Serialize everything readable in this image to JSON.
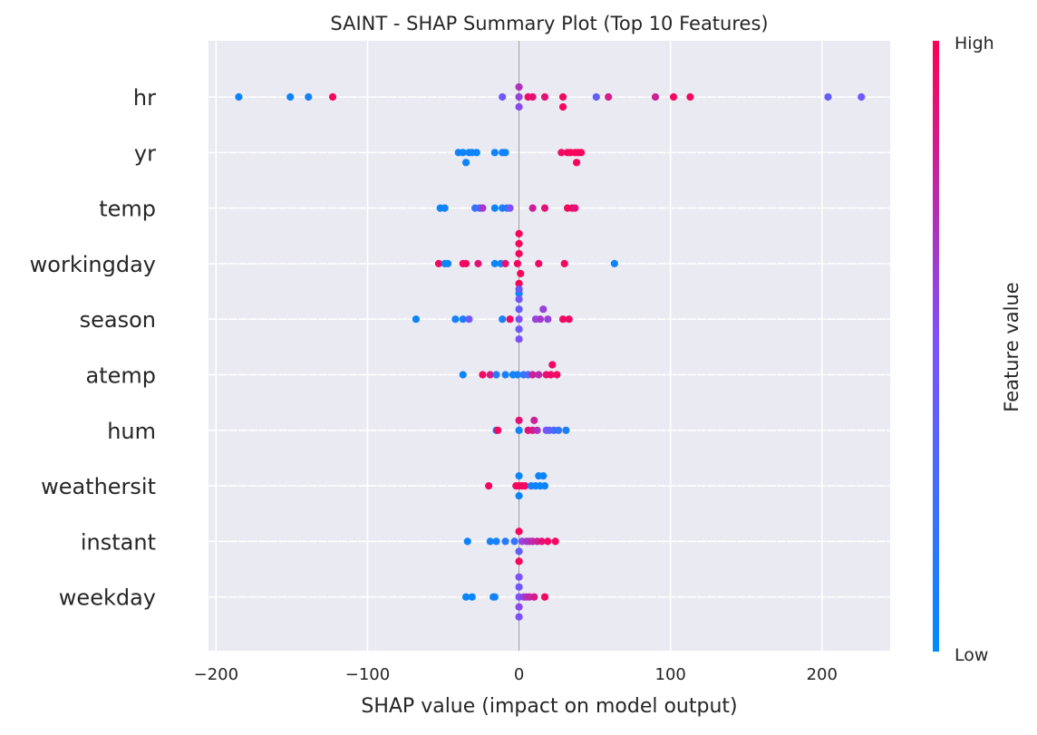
{
  "chart_data": {
    "type": "scatter",
    "title": "SAINT - SHAP Summary Plot (Top 10 Features)",
    "xlabel": "SHAP value (impact on model output)",
    "xlim": [
      -205,
      245
    ],
    "xticks": [
      {
        "value": -200,
        "label": "−200"
      },
      {
        "value": -100,
        "label": "−100"
      },
      {
        "value": 0,
        "label": "0"
      },
      {
        "value": 100,
        "label": "100"
      },
      {
        "value": 200,
        "label": "200"
      }
    ],
    "colorbar": {
      "title": "Feature value",
      "high_label": "High",
      "low_label": "Low",
      "low_color": "#008bfb",
      "mid_color": "#7c52ff",
      "high_color": "#ff0052"
    },
    "features": [
      {
        "name": "hr",
        "points": [
          {
            "x": -185,
            "v": 0.05
          },
          {
            "x": -151,
            "v": 0.05
          },
          {
            "x": -139,
            "v": 0.08
          },
          {
            "x": -123,
            "v": 0.97
          },
          {
            "x": -11,
            "v": 0.45
          },
          {
            "x": 0,
            "v": 0.55,
            "o": 1
          },
          {
            "x": 0,
            "v": 0.6
          },
          {
            "x": 0,
            "v": 0.7,
            "o": -1
          },
          {
            "x": 6,
            "v": 0.95
          },
          {
            "x": 9,
            "v": 0.9
          },
          {
            "x": 17,
            "v": 0.9
          },
          {
            "x": 29,
            "v": 0.95
          },
          {
            "x": 29,
            "v": 0.98,
            "o": 1
          },
          {
            "x": 51,
            "v": 0.4
          },
          {
            "x": 59,
            "v": 0.85
          },
          {
            "x": 90,
            "v": 0.8
          },
          {
            "x": 102,
            "v": 0.95
          },
          {
            "x": 113,
            "v": 0.95
          },
          {
            "x": 204,
            "v": 0.4
          },
          {
            "x": 226,
            "v": 0.45
          }
        ]
      },
      {
        "name": "yr",
        "points": [
          {
            "x": -40,
            "v": 0.08
          },
          {
            "x": -37,
            "v": 0.05
          },
          {
            "x": -35,
            "v": 0.05,
            "o": 1
          },
          {
            "x": -33,
            "v": 0.08
          },
          {
            "x": -31,
            "v": 0.05
          },
          {
            "x": -28,
            "v": 0.05
          },
          {
            "x": -16,
            "v": 0.05
          },
          {
            "x": -11,
            "v": 0.08
          },
          {
            "x": -9,
            "v": 0.05
          },
          {
            "x": 28,
            "v": 0.95
          },
          {
            "x": 32,
            "v": 0.95
          },
          {
            "x": 34,
            "v": 0.98
          },
          {
            "x": 37,
            "v": 0.98
          },
          {
            "x": 38,
            "v": 0.98,
            "o": 1
          },
          {
            "x": 39,
            "v": 0.95
          },
          {
            "x": 41,
            "v": 0.98
          }
        ]
      },
      {
        "name": "temp",
        "points": [
          {
            "x": -52,
            "v": 0.05
          },
          {
            "x": -49,
            "v": 0.08
          },
          {
            "x": -29,
            "v": 0.2
          },
          {
            "x": -26,
            "v": 0.3
          },
          {
            "x": -24,
            "v": 0.65
          },
          {
            "x": -16,
            "v": 0.05
          },
          {
            "x": -11,
            "v": 0.1
          },
          {
            "x": -8,
            "v": 0.15
          },
          {
            "x": -6,
            "v": 0.5
          },
          {
            "x": 9,
            "v": 0.8
          },
          {
            "x": 17,
            "v": 0.9
          },
          {
            "x": 32,
            "v": 0.95
          },
          {
            "x": 35,
            "v": 0.95
          },
          {
            "x": 37,
            "v": 0.9
          }
        ]
      },
      {
        "name": "workingday",
        "points": [
          {
            "x": -53,
            "v": 0.95
          },
          {
            "x": -49,
            "v": 0.05
          },
          {
            "x": -47,
            "v": 0.05
          },
          {
            "x": -37,
            "v": 0.95
          },
          {
            "x": -35,
            "v": 0.95
          },
          {
            "x": -27,
            "v": 0.9
          },
          {
            "x": -16,
            "v": 0.05
          },
          {
            "x": -12,
            "v": 0.05
          },
          {
            "x": -9,
            "v": 0.9
          },
          {
            "x": -1,
            "v": 0.98
          },
          {
            "x": 0,
            "v": 0.98,
            "o": -3
          },
          {
            "x": 0,
            "v": 0.98,
            "o": -2
          },
          {
            "x": 0,
            "v": 0.98,
            "o": -1
          },
          {
            "x": 1,
            "v": 0.98,
            "o": 1
          },
          {
            "x": 0,
            "v": 0.98,
            "o": 2
          },
          {
            "x": 0,
            "v": 0.05,
            "o": 3
          },
          {
            "x": 13,
            "v": 0.95
          },
          {
            "x": 30,
            "v": 0.95
          },
          {
            "x": 63,
            "v": 0.05
          }
        ]
      },
      {
        "name": "season",
        "points": [
          {
            "x": -68,
            "v": 0.05
          },
          {
            "x": -42,
            "v": 0.08
          },
          {
            "x": -37,
            "v": 0.1
          },
          {
            "x": -33,
            "v": 0.45
          },
          {
            "x": -11,
            "v": 0.1
          },
          {
            "x": -6,
            "v": 0.95
          },
          {
            "x": 0,
            "v": 0.4,
            "o": -3
          },
          {
            "x": 0,
            "v": 0.45,
            "o": -2
          },
          {
            "x": 0,
            "v": 0.4,
            "o": -1
          },
          {
            "x": 0,
            "v": 0.5
          },
          {
            "x": 0,
            "v": 0.45,
            "o": 1
          },
          {
            "x": 0,
            "v": 0.5,
            "o": 2
          },
          {
            "x": 11,
            "v": 0.6
          },
          {
            "x": 14,
            "v": 0.65
          },
          {
            "x": 16,
            "v": 0.6,
            "o": -1
          },
          {
            "x": 19,
            "v": 0.6
          },
          {
            "x": 29,
            "v": 0.95
          },
          {
            "x": 33,
            "v": 0.95
          }
        ]
      },
      {
        "name": "atemp",
        "points": [
          {
            "x": -37,
            "v": 0.05
          },
          {
            "x": -24,
            "v": 0.95
          },
          {
            "x": -19,
            "v": 0.85
          },
          {
            "x": -15,
            "v": 0.15
          },
          {
            "x": -9,
            "v": 0.1
          },
          {
            "x": -4,
            "v": 0.05
          },
          {
            "x": -1,
            "v": 0.1
          },
          {
            "x": 3,
            "v": 0.2
          },
          {
            "x": 6,
            "v": 0.3
          },
          {
            "x": 9,
            "v": 0.8
          },
          {
            "x": 13,
            "v": 0.75
          },
          {
            "x": 18,
            "v": 0.9
          },
          {
            "x": 21,
            "v": 0.95
          },
          {
            "x": 22,
            "v": 0.95,
            "o": -1
          },
          {
            "x": 25,
            "v": 0.95
          }
        ]
      },
      {
        "name": "hum",
        "points": [
          {
            "x": -15,
            "v": 0.05
          },
          {
            "x": -14,
            "v": 0.97
          },
          {
            "x": 0,
            "v": 0.9,
            "o": -1
          },
          {
            "x": 0,
            "v": 0.05
          },
          {
            "x": 6,
            "v": 0.9
          },
          {
            "x": 9,
            "v": 0.85
          },
          {
            "x": 10,
            "v": 0.8,
            "o": -1
          },
          {
            "x": 12,
            "v": 0.7
          },
          {
            "x": 18,
            "v": 0.5
          },
          {
            "x": 20,
            "v": 0.4
          },
          {
            "x": 23,
            "v": 0.3
          },
          {
            "x": 26,
            "v": 0.2
          },
          {
            "x": 31,
            "v": 0.1
          }
        ]
      },
      {
        "name": "weathersit",
        "points": [
          {
            "x": -20,
            "v": 0.95
          },
          {
            "x": -2,
            "v": 0.95
          },
          {
            "x": 0,
            "v": 0.98
          },
          {
            "x": 2,
            "v": 0.95
          },
          {
            "x": 4,
            "v": 0.95
          },
          {
            "x": 0,
            "v": 0.05,
            "o": -1
          },
          {
            "x": 0,
            "v": 0.05,
            "o": 1
          },
          {
            "x": 8,
            "v": 0.1
          },
          {
            "x": 11,
            "v": 0.05
          },
          {
            "x": 13,
            "v": 0.05,
            "o": -1
          },
          {
            "x": 14,
            "v": 0.05
          },
          {
            "x": 16,
            "v": 0.05,
            "o": -1
          },
          {
            "x": 17,
            "v": 0.05
          }
        ]
      },
      {
        "name": "instant",
        "points": [
          {
            "x": -34,
            "v": 0.05
          },
          {
            "x": -19,
            "v": 0.08
          },
          {
            "x": -15,
            "v": 0.1
          },
          {
            "x": -9,
            "v": 0.15
          },
          {
            "x": -3,
            "v": 0.2
          },
          {
            "x": 0,
            "v": 0.98,
            "o": -1
          },
          {
            "x": 0,
            "v": 0.4,
            "o": 1
          },
          {
            "x": 0,
            "v": 0.98,
            "o": 2
          },
          {
            "x": 2,
            "v": 0.6
          },
          {
            "x": 5,
            "v": 0.65
          },
          {
            "x": 7,
            "v": 0.7
          },
          {
            "x": 9,
            "v": 0.75
          },
          {
            "x": 12,
            "v": 0.8
          },
          {
            "x": 15,
            "v": 0.9
          },
          {
            "x": 19,
            "v": 0.95
          },
          {
            "x": 24,
            "v": 0.95
          }
        ]
      },
      {
        "name": "weekday",
        "points": [
          {
            "x": -35,
            "v": 0.05
          },
          {
            "x": -31,
            "v": 0.05
          },
          {
            "x": -17,
            "v": 0.05
          },
          {
            "x": -16,
            "v": 0.08
          },
          {
            "x": 0,
            "v": 0.5,
            "o": -2
          },
          {
            "x": 0,
            "v": 0.45,
            "o": -1
          },
          {
            "x": 0,
            "v": 0.5
          },
          {
            "x": 0,
            "v": 0.55,
            "o": 1
          },
          {
            "x": 0,
            "v": 0.5,
            "o": 2
          },
          {
            "x": 3,
            "v": 0.6
          },
          {
            "x": 5,
            "v": 0.7
          },
          {
            "x": 7,
            "v": 0.75
          },
          {
            "x": 10,
            "v": 0.85
          },
          {
            "x": 17,
            "v": 0.95
          }
        ]
      }
    ]
  }
}
